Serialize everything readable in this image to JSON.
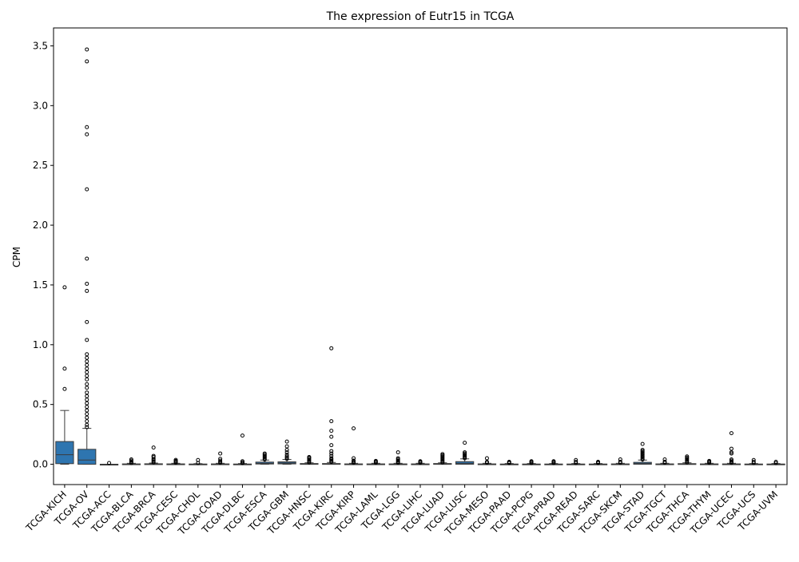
{
  "chart_data": {
    "type": "box",
    "title": "The expression of Eutr15 in TCGA",
    "xlabel": "",
    "ylabel": "CPM",
    "ylim": [
      -0.17,
      3.65
    ],
    "yticks": [
      0.0,
      0.5,
      1.0,
      1.5,
      2.0,
      2.5,
      3.0,
      3.5
    ],
    "ytick_labels": [
      "0.0",
      "0.5",
      "1.0",
      "1.5",
      "2.0",
      "2.5",
      "3.0",
      "3.5"
    ],
    "grid": false,
    "legend": "none",
    "box_color": "#2e75b0",
    "edge_color": "#3b3b3b",
    "categories": [
      "TCGA-KICH",
      "TCGA-OV",
      "TCGA-ACC",
      "TCGA-BLCA",
      "TCGA-BRCA",
      "TCGA-CESC",
      "TCGA-CHOL",
      "TCGA-COAD",
      "TCGA-DLBC",
      "TCGA-ESCA",
      "TCGA-GBM",
      "TCGA-HNSC",
      "TCGA-KIRC",
      "TCGA-KIRP",
      "TCGA-LAML",
      "TCGA-LGG",
      "TCGA-LIHC",
      "TCGA-LUAD",
      "TCGA-LUSC",
      "TCGA-MESO",
      "TCGA-PAAD",
      "TCGA-PCPG",
      "TCGA-PRAD",
      "TCGA-READ",
      "TCGA-SARC",
      "TCGA-SKCM",
      "TCGA-STAD",
      "TCGA-TGCT",
      "TCGA-THCA",
      "TCGA-THYM",
      "TCGA-UCEC",
      "TCGA-UCS",
      "TCGA-UVM"
    ],
    "boxes": [
      {
        "whislo": 0.0,
        "q1": 0.005,
        "med": 0.08,
        "q3": 0.19,
        "whishi": 0.45,
        "fliers": [
          1.48,
          0.8,
          0.63
        ]
      },
      {
        "whislo": 0.0,
        "q1": 0.0,
        "med": 0.035,
        "q3": 0.125,
        "whishi": 0.3,
        "fliers": [
          3.47,
          3.37,
          2.82,
          2.76,
          2.3,
          1.72,
          1.51,
          1.45,
          1.19,
          1.04,
          0.92,
          0.89,
          0.86,
          0.83,
          0.8,
          0.77,
          0.74,
          0.71,
          0.67,
          0.64,
          0.6,
          0.57,
          0.54,
          0.51,
          0.48,
          0.45,
          0.42,
          0.39,
          0.36,
          0.33,
          0.31
        ]
      },
      {
        "whislo": 0.0,
        "q1": 0.0,
        "med": 0.0,
        "q3": 0.0,
        "whishi": 0.0,
        "fliers": [
          0.01
        ]
      },
      {
        "whislo": 0.0,
        "q1": 0.0,
        "med": 0.0,
        "q3": 0.003,
        "whishi": 0.008,
        "fliers": [
          0.01,
          0.02,
          0.03,
          0.04
        ]
      },
      {
        "whislo": 0.0,
        "q1": 0.0,
        "med": 0.0,
        "q3": 0.004,
        "whishi": 0.01,
        "fliers": [
          0.015,
          0.025,
          0.035,
          0.045,
          0.06,
          0.07,
          0.14
        ]
      },
      {
        "whislo": 0.0,
        "q1": 0.0,
        "med": 0.0,
        "q3": 0.003,
        "whishi": 0.008,
        "fliers": [
          0.012,
          0.02,
          0.028,
          0.036
        ]
      },
      {
        "whislo": 0.0,
        "q1": 0.0,
        "med": 0.0,
        "q3": 0.002,
        "whishi": 0.005,
        "fliers": [
          0.01,
          0.035
        ]
      },
      {
        "whislo": 0.0,
        "q1": 0.0,
        "med": 0.0,
        "q3": 0.003,
        "whishi": 0.008,
        "fliers": [
          0.012,
          0.02,
          0.03,
          0.045,
          0.09
        ]
      },
      {
        "whislo": 0.0,
        "q1": 0.0,
        "med": 0.0,
        "q3": 0.002,
        "whishi": 0.006,
        "fliers": [
          0.01,
          0.015,
          0.025,
          0.24
        ]
      },
      {
        "whislo": 0.0,
        "q1": 0.002,
        "med": 0.008,
        "q3": 0.018,
        "whishi": 0.035,
        "fliers": [
          0.04,
          0.05,
          0.06,
          0.07,
          0.08,
          0.09
        ]
      },
      {
        "whislo": 0.0,
        "q1": 0.003,
        "med": 0.01,
        "q3": 0.02,
        "whishi": 0.04,
        "fliers": [
          0.045,
          0.055,
          0.065,
          0.08,
          0.1,
          0.12,
          0.15,
          0.19
        ]
      },
      {
        "whislo": 0.0,
        "q1": 0.0,
        "med": 0.002,
        "q3": 0.006,
        "whishi": 0.012,
        "fliers": [
          0.015,
          0.025,
          0.035,
          0.045,
          0.055,
          0.06
        ]
      },
      {
        "whislo": 0.0,
        "q1": 0.0,
        "med": 0.002,
        "q3": 0.006,
        "whishi": 0.015,
        "fliers": [
          0.02,
          0.03,
          0.04,
          0.05,
          0.07,
          0.09,
          0.11,
          0.16,
          0.23,
          0.28,
          0.36,
          0.97
        ]
      },
      {
        "whislo": 0.0,
        "q1": 0.0,
        "med": 0.0,
        "q3": 0.003,
        "whishi": 0.008,
        "fliers": [
          0.012,
          0.02,
          0.03,
          0.05,
          0.3
        ]
      },
      {
        "whislo": 0.0,
        "q1": 0.0,
        "med": 0.0,
        "q3": 0.003,
        "whishi": 0.008,
        "fliers": [
          0.012,
          0.02,
          0.028
        ]
      },
      {
        "whislo": 0.0,
        "q1": 0.0,
        "med": 0.0,
        "q3": 0.003,
        "whishi": 0.008,
        "fliers": [
          0.012,
          0.02,
          0.03,
          0.04,
          0.05,
          0.1
        ]
      },
      {
        "whislo": 0.0,
        "q1": 0.0,
        "med": 0.0,
        "q3": 0.003,
        "whishi": 0.008,
        "fliers": [
          0.012,
          0.018,
          0.025
        ]
      },
      {
        "whislo": 0.0,
        "q1": 0.0,
        "med": 0.002,
        "q3": 0.006,
        "whishi": 0.012,
        "fliers": [
          0.015,
          0.025,
          0.035,
          0.045,
          0.055,
          0.065,
          0.075,
          0.085
        ]
      },
      {
        "whislo": 0.0,
        "q1": 0.0,
        "med": 0.008,
        "q3": 0.022,
        "whishi": 0.045,
        "fliers": [
          0.05,
          0.06,
          0.07,
          0.08,
          0.09,
          0.1,
          0.18
        ]
      },
      {
        "whislo": 0.0,
        "q1": 0.0,
        "med": 0.0,
        "q3": 0.003,
        "whishi": 0.008,
        "fliers": [
          0.012,
          0.02,
          0.05
        ]
      },
      {
        "whislo": 0.0,
        "q1": 0.0,
        "med": 0.0,
        "q3": 0.002,
        "whishi": 0.006,
        "fliers": [
          0.01,
          0.015,
          0.02
        ]
      },
      {
        "whislo": 0.0,
        "q1": 0.0,
        "med": 0.0,
        "q3": 0.002,
        "whishi": 0.006,
        "fliers": [
          0.01,
          0.018,
          0.025
        ]
      },
      {
        "whislo": 0.0,
        "q1": 0.0,
        "med": 0.0,
        "q3": 0.002,
        "whishi": 0.006,
        "fliers": [
          0.01,
          0.018,
          0.025
        ]
      },
      {
        "whislo": 0.0,
        "q1": 0.0,
        "med": 0.0,
        "q3": 0.002,
        "whishi": 0.006,
        "fliers": [
          0.01,
          0.02,
          0.035
        ]
      },
      {
        "whislo": 0.0,
        "q1": 0.0,
        "med": 0.0,
        "q3": 0.002,
        "whishi": 0.006,
        "fliers": [
          0.01,
          0.015,
          0.02
        ]
      },
      {
        "whislo": 0.0,
        "q1": 0.0,
        "med": 0.0,
        "q3": 0.003,
        "whishi": 0.008,
        "fliers": [
          0.012,
          0.02,
          0.04
        ]
      },
      {
        "whislo": 0.0,
        "q1": 0.0,
        "med": 0.006,
        "q3": 0.016,
        "whishi": 0.035,
        "fliers": [
          0.04,
          0.05,
          0.06,
          0.07,
          0.08,
          0.09,
          0.1,
          0.11,
          0.12,
          0.17
        ]
      },
      {
        "whislo": 0.0,
        "q1": 0.0,
        "med": 0.0,
        "q3": 0.003,
        "whishi": 0.008,
        "fliers": [
          0.012,
          0.02,
          0.04
        ]
      },
      {
        "whislo": 0.0,
        "q1": 0.0,
        "med": 0.002,
        "q3": 0.005,
        "whishi": 0.012,
        "fliers": [
          0.015,
          0.025,
          0.035,
          0.045,
          0.055,
          0.065
        ]
      },
      {
        "whislo": 0.0,
        "q1": 0.0,
        "med": 0.0,
        "q3": 0.003,
        "whishi": 0.008,
        "fliers": [
          0.012,
          0.02,
          0.028
        ]
      },
      {
        "whislo": 0.0,
        "q1": 0.0,
        "med": 0.0,
        "q3": 0.003,
        "whishi": 0.008,
        "fliers": [
          0.012,
          0.02,
          0.03,
          0.04,
          0.09,
          0.1,
          0.13,
          0.26
        ]
      },
      {
        "whislo": 0.0,
        "q1": 0.0,
        "med": 0.0,
        "q3": 0.002,
        "whishi": 0.006,
        "fliers": [
          0.01,
          0.02,
          0.035
        ]
      },
      {
        "whislo": 0.0,
        "q1": 0.0,
        "med": 0.0,
        "q3": 0.002,
        "whishi": 0.006,
        "fliers": [
          0.01,
          0.02
        ]
      }
    ]
  }
}
